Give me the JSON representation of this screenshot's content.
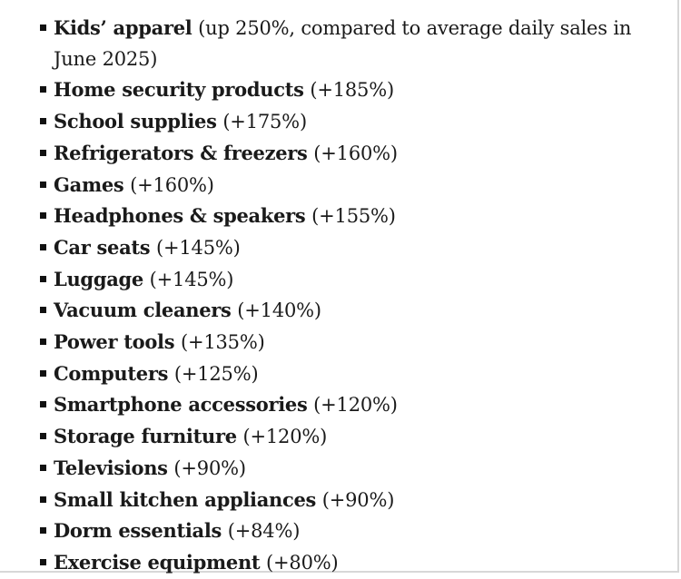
{
  "items": [
    {
      "name": "Kids’ apparel",
      "detail": "(up 250%, compared to average daily sales in June 2025)"
    },
    {
      "name": "Home security products",
      "detail": "(+185%)"
    },
    {
      "name": "School supplies",
      "detail": "(+175%)"
    },
    {
      "name": "Refrigerators & freezers",
      "detail": "(+160%)"
    },
    {
      "name": "Games",
      "detail": "(+160%)"
    },
    {
      "name": "Headphones & speakers",
      "detail": "(+155%)"
    },
    {
      "name": "Car seats",
      "detail": "(+145%)"
    },
    {
      "name": "Luggage",
      "detail": "(+145%)"
    },
    {
      "name": "Vacuum cleaners",
      "detail": "(+140%)"
    },
    {
      "name": "Power tools",
      "detail": "(+135%)"
    },
    {
      "name": "Computers",
      "detail": "(+125%)"
    },
    {
      "name": "Smartphone accessories",
      "detail": "(+120%)"
    },
    {
      "name": "Storage furniture",
      "detail": "(+120%)"
    },
    {
      "name": "Televisions",
      "detail": "(+90%)"
    },
    {
      "name": "Small kitchen appliances",
      "detail": "(+90%)"
    },
    {
      "name": "Dorm essentials",
      "detail": "(+84%)"
    },
    {
      "name": "Exercise equipment",
      "detail": "(+80%)"
    }
  ]
}
